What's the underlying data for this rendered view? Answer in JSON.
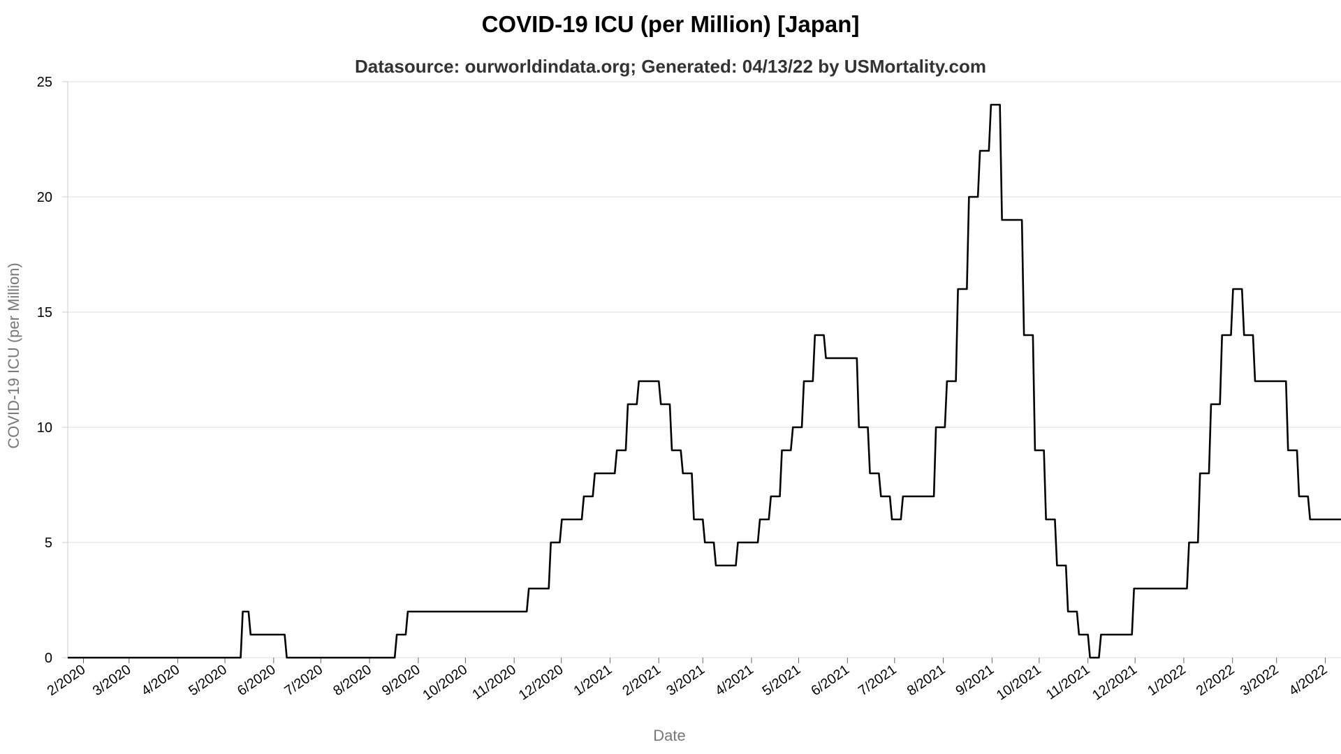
{
  "chart_data": {
    "type": "line",
    "title": "COVID-19 ICU (per Million) [Japan]",
    "subtitle": "Datasource: ourworldindata.org; Generated: 04/13/22 by USMortality.com",
    "xlabel": "Date",
    "ylabel": "COVID-19 ICU (per Million)",
    "ylim": [
      0,
      25
    ],
    "yticks": [
      0,
      5,
      10,
      15,
      20,
      25
    ],
    "xlim": [
      "2020-01-22",
      "2022-04-11"
    ],
    "xticks": [
      {
        "date": "2020-02-01",
        "label": "2/2020"
      },
      {
        "date": "2020-03-01",
        "label": "3/2020"
      },
      {
        "date": "2020-04-01",
        "label": "4/2020"
      },
      {
        "date": "2020-05-01",
        "label": "5/2020"
      },
      {
        "date": "2020-06-01",
        "label": "6/2020"
      },
      {
        "date": "2020-07-01",
        "label": "7/2020"
      },
      {
        "date": "2020-08-01",
        "label": "8/2020"
      },
      {
        "date": "2020-09-01",
        "label": "9/2020"
      },
      {
        "date": "2020-10-01",
        "label": "10/2020"
      },
      {
        "date": "2020-11-01",
        "label": "11/2020"
      },
      {
        "date": "2020-12-01",
        "label": "12/2020"
      },
      {
        "date": "2021-01-01",
        "label": "1/2021"
      },
      {
        "date": "2021-02-01",
        "label": "2/2021"
      },
      {
        "date": "2021-03-01",
        "label": "3/2021"
      },
      {
        "date": "2021-04-01",
        "label": "4/2021"
      },
      {
        "date": "2021-05-01",
        "label": "5/2021"
      },
      {
        "date": "2021-06-01",
        "label": "6/2021"
      },
      {
        "date": "2021-07-01",
        "label": "7/2021"
      },
      {
        "date": "2021-08-01",
        "label": "8/2021"
      },
      {
        "date": "2021-09-01",
        "label": "9/2021"
      },
      {
        "date": "2021-10-01",
        "label": "10/2021"
      },
      {
        "date": "2021-11-01",
        "label": "11/2021"
      },
      {
        "date": "2021-12-01",
        "label": "12/2021"
      },
      {
        "date": "2022-01-01",
        "label": "1/2022"
      },
      {
        "date": "2022-02-01",
        "label": "2/2022"
      },
      {
        "date": "2022-03-01",
        "label": "3/2022"
      },
      {
        "date": "2022-04-01",
        "label": "4/2022"
      }
    ],
    "grid": true,
    "series": [
      {
        "line_color": "#000000",
        "x": [
          "2020-01-22",
          "2020-05-11",
          "2020-05-16",
          "2020-06-08",
          "2020-08-17",
          "2020-08-24",
          "2020-11-09",
          "2020-11-23",
          "2020-11-30",
          "2020-12-14",
          "2020-12-21",
          "2021-01-04",
          "2021-01-11",
          "2021-01-18",
          "2021-02-01",
          "2021-02-08",
          "2021-02-15",
          "2021-02-22",
          "2021-03-01",
          "2021-03-08",
          "2021-03-22",
          "2021-04-05",
          "2021-04-12",
          "2021-04-19",
          "2021-04-26",
          "2021-05-03",
          "2021-05-10",
          "2021-05-17",
          "2021-06-07",
          "2021-06-14",
          "2021-06-21",
          "2021-06-28",
          "2021-07-05",
          "2021-07-26",
          "2021-08-02",
          "2021-08-09",
          "2021-08-16",
          "2021-08-23",
          "2021-08-30",
          "2021-09-06",
          "2021-09-20",
          "2021-09-27",
          "2021-10-04",
          "2021-10-11",
          "2021-10-18",
          "2021-10-25",
          "2021-11-01",
          "2021-11-08",
          "2021-11-29",
          "2022-01-03",
          "2022-01-10",
          "2022-01-17",
          "2022-01-24",
          "2022-01-31",
          "2022-02-07",
          "2022-02-14",
          "2022-03-07",
          "2022-03-14",
          "2022-03-21",
          "2022-03-28",
          "2022-04-04",
          "2022-04-11"
        ],
        "values": [
          0,
          2,
          1,
          0,
          1,
          2,
          3,
          5,
          6,
          7,
          8,
          9,
          11,
          12,
          11,
          9,
          8,
          6,
          5,
          4,
          5,
          6,
          7,
          9,
          10,
          12,
          14,
          13,
          10,
          8,
          7,
          6,
          7,
          10,
          12,
          16,
          20,
          22,
          24,
          19,
          14,
          9,
          6,
          4,
          2,
          1,
          0,
          1,
          3,
          5,
          8,
          11,
          14,
          16,
          14,
          12,
          9,
          7,
          6,
          6,
          6,
          6
        ]
      }
    ]
  }
}
